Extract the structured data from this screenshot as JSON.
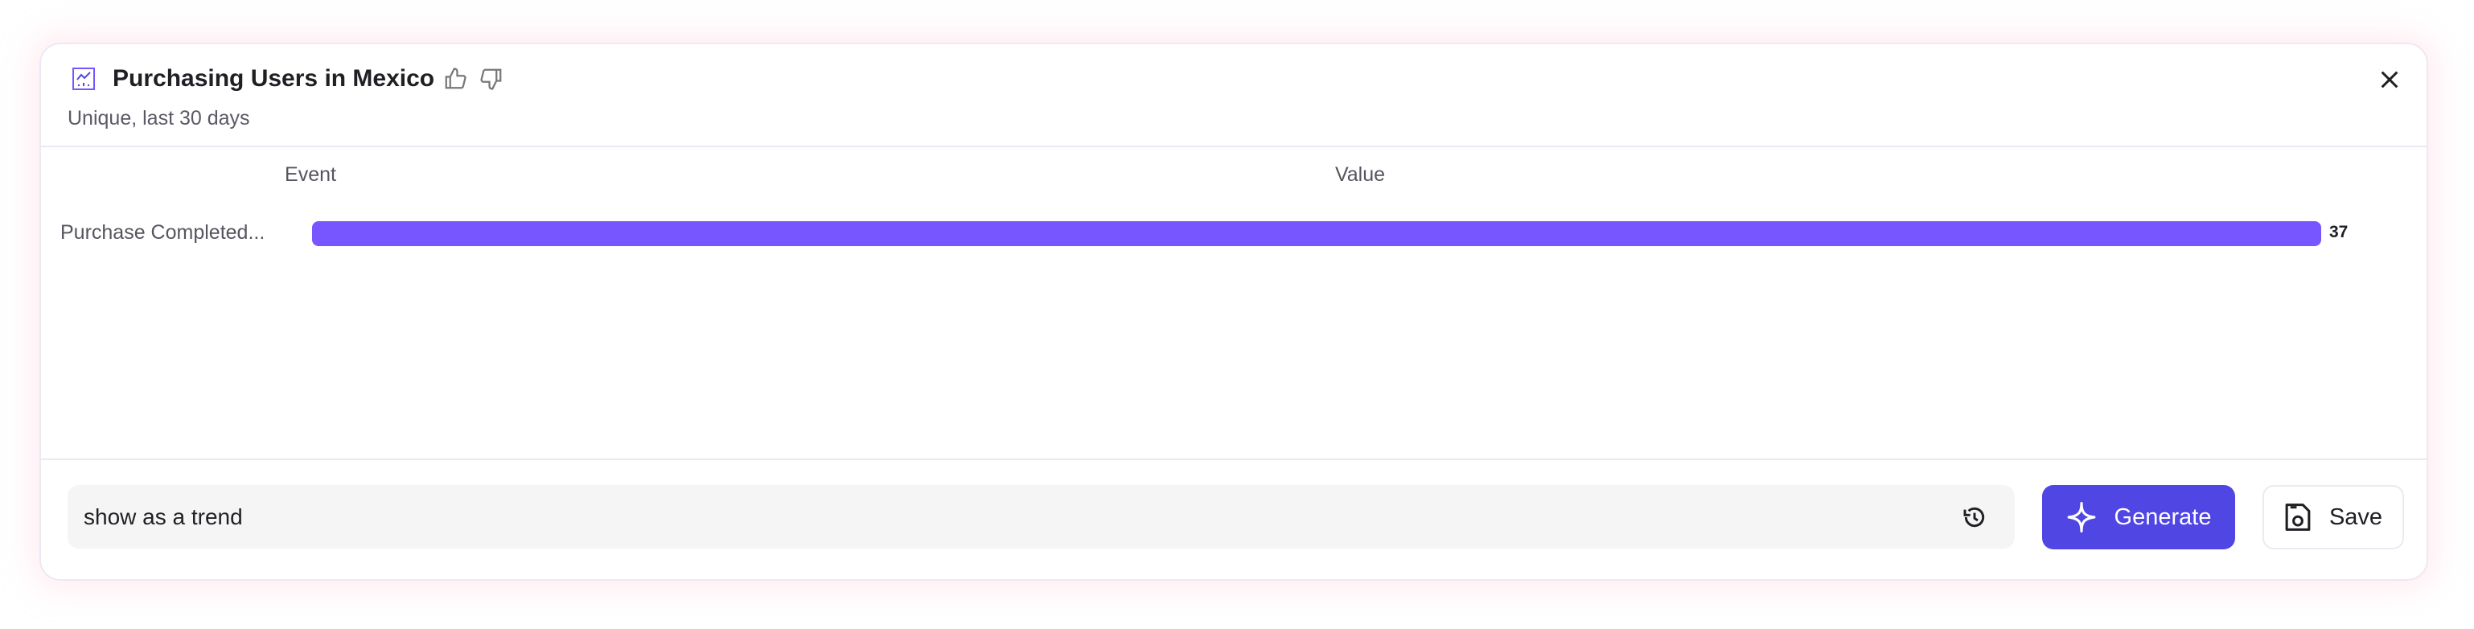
{
  "header": {
    "title": "Purchasing Users in Mexico",
    "subtitle": "Unique, last 30 days",
    "icon": "line-chart-icon"
  },
  "table": {
    "columns": [
      "Event",
      "Value"
    ],
    "rows": [
      {
        "event": "Purchase Completed...",
        "value": "37"
      }
    ]
  },
  "chart_data": {
    "type": "bar",
    "orientation": "horizontal",
    "categories": [
      "Purchase Completed..."
    ],
    "values": [
      37
    ],
    "xlabel": "Value",
    "ylabel": "Event",
    "bar_color": "#7856ff"
  },
  "prompt": {
    "value": "show as a trend"
  },
  "buttons": {
    "generate": "Generate",
    "save": "Save"
  },
  "colors": {
    "accent": "#5046e4",
    "bar": "#7856ff"
  }
}
